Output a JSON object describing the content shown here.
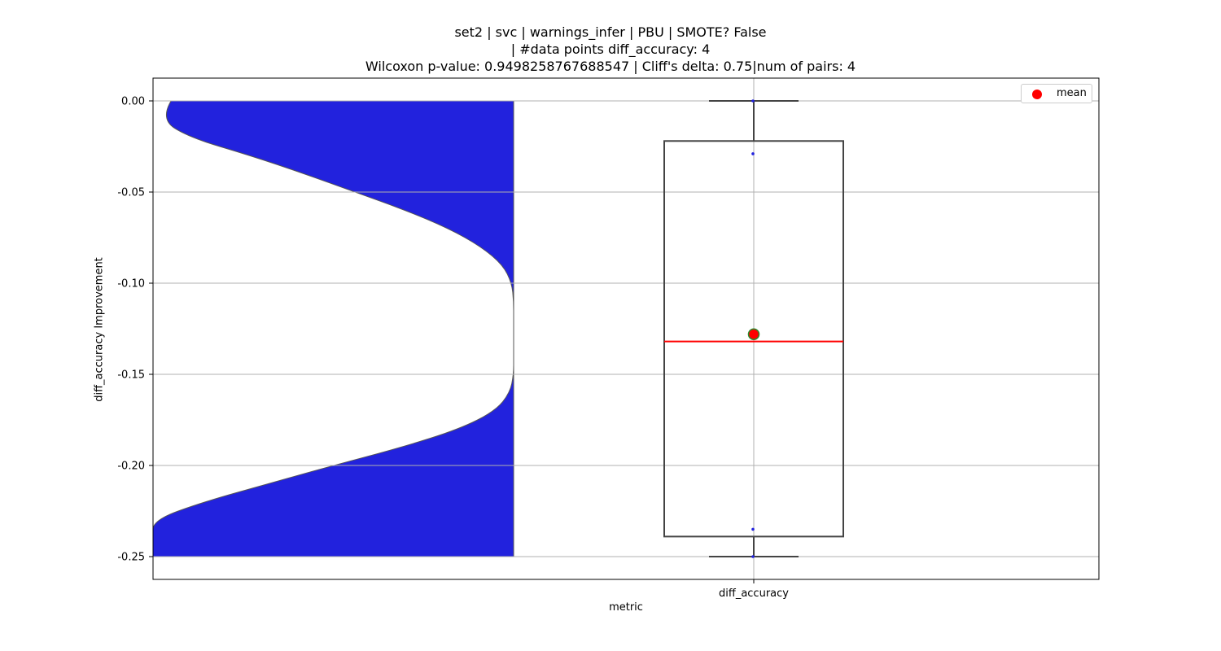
{
  "title": {
    "line1": "set2 | svc | warnings_infer | PBU | SMOTE? False",
    "line2": "| #data points diff_accuracy: 4",
    "line3": "Wilcoxon p-value: 0.9498258767688547 | Cliff's delta: 0.75|num of pairs: 4"
  },
  "legend": {
    "label": "mean",
    "marker_color": "#ff0000"
  },
  "colors": {
    "violin_fill": "#2222dd",
    "box_edge": "#444444",
    "median": "#ff0000",
    "mean_fill": "#ff0000",
    "mean_edge": "#2a8a2a",
    "grid": "#b0b0b0"
  },
  "chart_data": {
    "type": "box",
    "ylabel": "diff_accuracy Improvement",
    "xlabel": "metric",
    "categories": [
      "diff_accuracy"
    ],
    "ylim": [
      -0.2625,
      0.0125
    ],
    "yticks": [
      "0.00",
      "-0.05",
      "-0.10",
      "-0.15",
      "-0.20",
      "-0.25"
    ],
    "ytick_values": [
      0.0,
      -0.05,
      -0.1,
      -0.15,
      -0.2,
      -0.25
    ],
    "grid": true,
    "legend_position": "top-right",
    "box": {
      "whisker_high": 0.0,
      "q3": -0.022,
      "median": -0.132,
      "q1": -0.239,
      "whisker_low": -0.25,
      "mean": -0.128
    },
    "points": [
      0.0,
      -0.029,
      -0.235,
      -0.25
    ],
    "violin": {
      "y": [
        0.0,
        -0.01,
        -0.02,
        -0.03,
        -0.04,
        -0.05,
        -0.06,
        -0.07,
        -0.08,
        -0.09,
        -0.1,
        -0.11,
        -0.12,
        -0.13,
        -0.14,
        -0.15,
        -0.16,
        -0.17,
        -0.18,
        -0.19,
        -0.2,
        -0.21,
        -0.22,
        -0.23,
        -0.24,
        -0.25
      ],
      "density": [
        0.05,
        0.02,
        0.1,
        0.27,
        0.42,
        0.56,
        0.7,
        0.82,
        0.91,
        0.97,
        0.995,
        1.0,
        1.0,
        1.0,
        1.0,
        1.0,
        0.99,
        0.95,
        0.85,
        0.69,
        0.5,
        0.32,
        0.14,
        0.0,
        0.0,
        0.0
      ]
    }
  }
}
